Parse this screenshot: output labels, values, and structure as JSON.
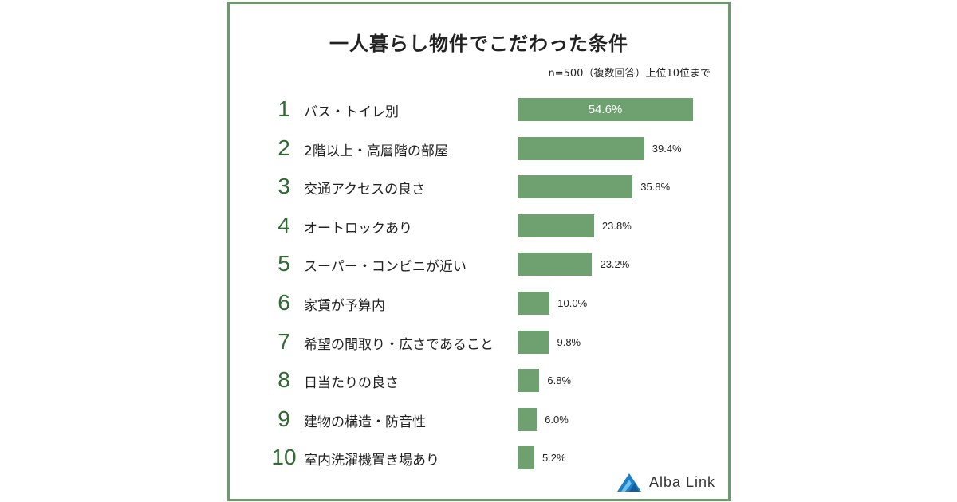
{
  "chart_data": {
    "type": "bar",
    "orientation": "horizontal",
    "title": "一人暮らし物件でこだわった条件",
    "subtitle": "n=500（複数回答）上位10位まで",
    "ranks": [
      "1",
      "2",
      "3",
      "4",
      "5",
      "6",
      "7",
      "8",
      "9",
      "10"
    ],
    "categories": [
      "バス・トイレ別",
      "2階以上・高層階の部屋",
      "交通アクセスの良さ",
      "オートロックあり",
      "スーパー・コンビニが近い",
      "家賃が予算内",
      "希望の間取り・広さであること",
      "日当たりの良さ",
      "建物の構造・防音性",
      "室内洗濯機置き場あり"
    ],
    "values": [
      54.6,
      39.4,
      35.8,
      23.8,
      23.2,
      10.0,
      9.8,
      6.8,
      6.0,
      5.2
    ],
    "value_labels": [
      "54.6%",
      "39.4%",
      "35.8%",
      "23.8%",
      "23.2%",
      "10.0%",
      "9.8%",
      "6.8%",
      "6.0%",
      "5.2%"
    ],
    "xlim": [
      0,
      54.6
    ],
    "bar_color": "#6fa070",
    "rank_color": "#2f6b32",
    "grid": false
  },
  "logo": {
    "text": "Alba Link"
  },
  "colors": {
    "frame": "#6b9a6c"
  }
}
